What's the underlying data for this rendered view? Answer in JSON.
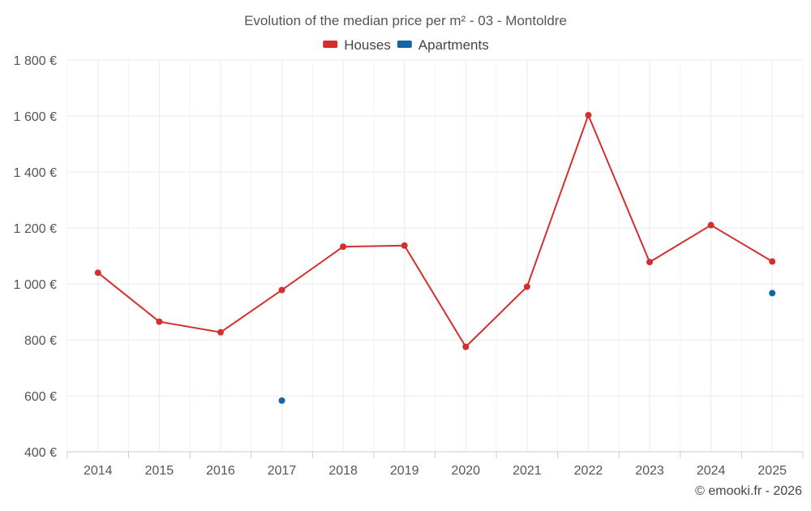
{
  "chart_data": {
    "type": "line",
    "title": "Evolution of the median price per m² - 03 - Montoldre",
    "categories": [
      "2014",
      "2015",
      "2016",
      "2017",
      "2018",
      "2019",
      "2020",
      "2021",
      "2022",
      "2023",
      "2024",
      "2025"
    ],
    "series": [
      {
        "name": "Houses",
        "color": "#d32f2f",
        "values": [
          1040,
          865,
          827,
          978,
          1133,
          1137,
          775,
          990,
          1603,
          1078,
          1210,
          1080
        ]
      },
      {
        "name": "Apartments",
        "color": "#1565a0",
        "values": [
          null,
          null,
          null,
          583,
          null,
          null,
          null,
          null,
          null,
          null,
          null,
          967
        ]
      }
    ],
    "ylim": [
      400,
      1800
    ],
    "yticks": [
      400,
      600,
      800,
      1000,
      1200,
      1400,
      1600,
      1800
    ],
    "ytick_labels": [
      "400 €",
      "600 €",
      "800 €",
      "1 000 €",
      "1 200 €",
      "1 400 €",
      "1 600 €",
      "1 800 €"
    ],
    "xlabel": "",
    "ylabel": "",
    "grid": true,
    "legend": "top-center"
  },
  "footer": {
    "credit": "© emooki.fr - 2026"
  }
}
